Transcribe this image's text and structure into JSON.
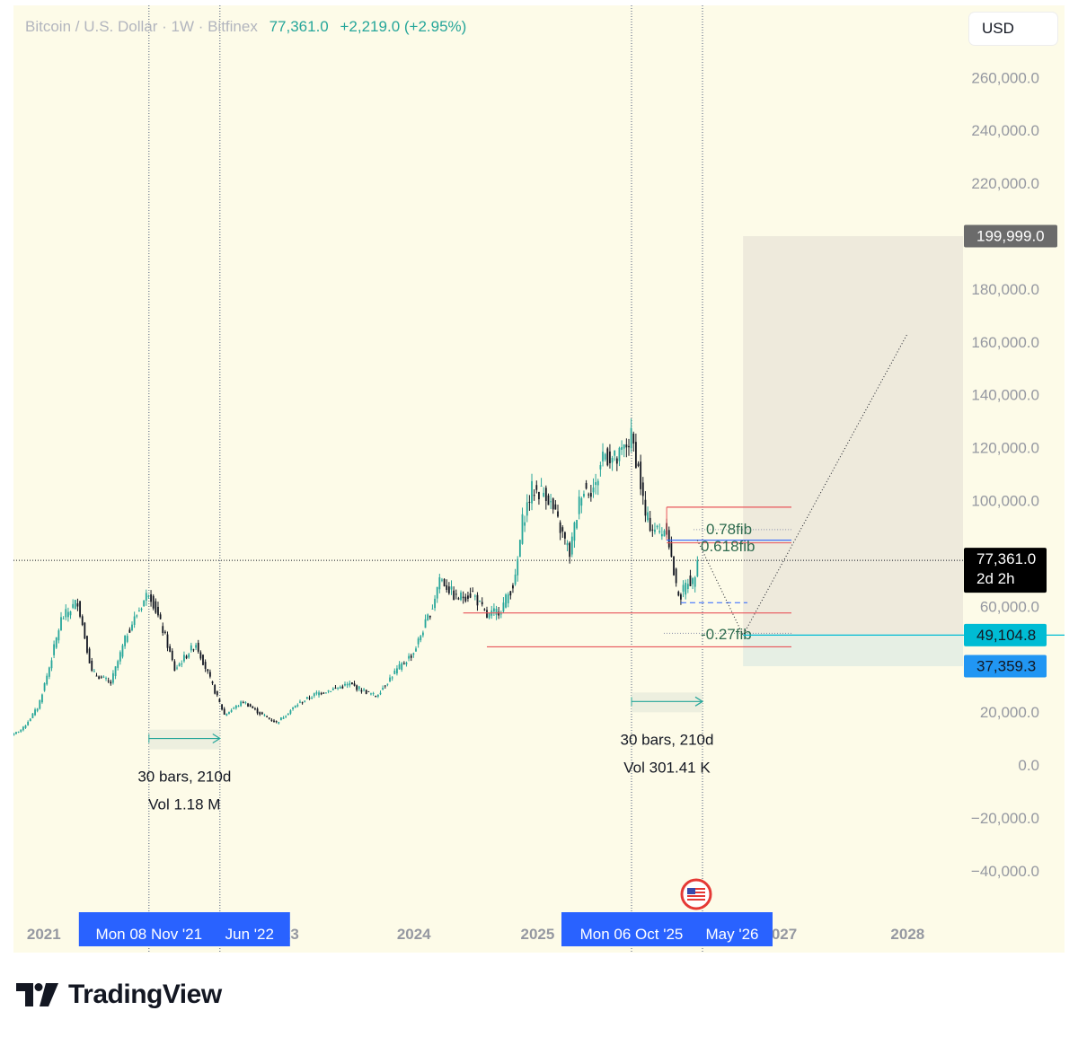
{
  "header": {
    "symbol": "Bitcoin / U.S. Dollar · 1W · Bitfinex",
    "price": "77,361.0",
    "change": "+2,219.0 (+2.95%)"
  },
  "currency_button": {
    "label": "USD"
  },
  "footer": {
    "brand": "TradingView"
  },
  "colors": {
    "background": "#fdfbe8",
    "up": "#26a69a",
    "down": "#131722",
    "fib_red": "#e8545a",
    "fib_blue": "#2962ff",
    "cyan_label": "#00bcd4",
    "blue_label": "#2196f3",
    "date_label": "#2962ff",
    "target_box": "#eeeadc"
  },
  "chart_data": {
    "type": "candlestick",
    "y_axis": {
      "range": [
        -50000,
        270000
      ],
      "ticks": [
        "260,000.0",
        "240,000.0",
        "220,000.0",
        "180,000.0",
        "160,000.0",
        "140,000.0",
        "120,000.0",
        "100,000.0",
        "60,000.0",
        "20,000.0",
        "0.0",
        "−20,000.0",
        "−40,000.0"
      ],
      "tick_values": [
        260000,
        240000,
        220000,
        180000,
        160000,
        140000,
        120000,
        100000,
        60000,
        20000,
        0,
        -20000,
        -40000
      ]
    },
    "x_axis": {
      "labels": [
        "2021",
        "23",
        "2024",
        "2025",
        "027",
        "2028"
      ],
      "label_dates": [
        "2021-01-01",
        "2023-01-01",
        "2024-01-01",
        "2025-01-01",
        "2027-01-01",
        "2028-01-01"
      ]
    },
    "series_anchors": [
      [
        "2020-09-20",
        10500
      ],
      [
        "2020-11-01",
        14000
      ],
      [
        "2020-12-15",
        22000
      ],
      [
        "2021-01-15",
        36000
      ],
      [
        "2021-02-21",
        55000
      ],
      [
        "2021-04-11",
        62000
      ],
      [
        "2021-05-23",
        35000
      ],
      [
        "2021-07-18",
        31000
      ],
      [
        "2021-09-05",
        50000
      ],
      [
        "2021-11-08",
        66000
      ],
      [
        "2021-12-27",
        48000
      ],
      [
        "2022-01-23",
        36000
      ],
      [
        "2022-03-27",
        46000
      ],
      [
        "2022-05-15",
        30000
      ],
      [
        "2022-06-19",
        19000
      ],
      [
        "2022-08-14",
        24000
      ],
      [
        "2022-10-02",
        19500
      ],
      [
        "2022-11-20",
        16000
      ],
      [
        "2023-01-22",
        23000
      ],
      [
        "2023-03-19",
        27000
      ],
      [
        "2023-06-25",
        30500
      ],
      [
        "2023-09-10",
        26000
      ],
      [
        "2023-11-05",
        35000
      ],
      [
        "2023-12-31",
        42500
      ],
      [
        "2024-02-25",
        60000
      ],
      [
        "2024-03-17",
        71000
      ],
      [
        "2024-05-05",
        63000
      ],
      [
        "2024-06-23",
        65000
      ],
      [
        "2024-08-04",
        56000
      ],
      [
        "2024-09-15",
        59000
      ],
      [
        "2024-10-27",
        70000
      ],
      [
        "2024-11-17",
        92000
      ],
      [
        "2024-12-15",
        104000
      ],
      [
        "2025-01-26",
        103000
      ],
      [
        "2025-02-23",
        94000
      ],
      [
        "2025-04-06",
        80000
      ],
      [
        "2025-05-11",
        104000
      ],
      [
        "2025-06-22",
        105000
      ],
      [
        "2025-07-13",
        118000
      ],
      [
        "2025-08-24",
        115000
      ],
      [
        "2025-10-06",
        124000
      ],
      [
        "2025-10-26",
        112000
      ],
      [
        "2025-11-16",
        94000
      ],
      [
        "2025-11-30",
        91000
      ],
      [
        "2025-12-28",
        88000
      ],
      [
        "2026-01-18",
        90000
      ],
      [
        "2026-02-01",
        78000
      ],
      [
        "2026-02-15",
        67000
      ],
      [
        "2026-03-01",
        64000
      ],
      [
        "2026-03-22",
        70000
      ],
      [
        "2026-04-05",
        69000
      ],
      [
        "2026-04-19",
        77361
      ]
    ],
    "last_price": 77361,
    "fib_labels": [
      "0.78fib",
      "0.618fib",
      "-0.27fib"
    ],
    "fib_levels": [
      {
        "label": "",
        "value": 97500,
        "color": "red"
      },
      {
        "label": "0.78fib",
        "value": 89000,
        "color": "dotted"
      },
      {
        "label": "0.618fib",
        "value": 85000,
        "color": "blue-red"
      },
      {
        "label": "",
        "value": 57500,
        "color": "red"
      },
      {
        "label": "-0.27fib",
        "value": 49104.8,
        "color": "dotted"
      }
    ],
    "horizontal_rays": [
      {
        "value": 77361,
        "style": "dotted-black"
      },
      {
        "value": 49104.8,
        "style": "cyan"
      }
    ],
    "price_labels": [
      {
        "text": "199,999.0",
        "value": 199999,
        "style": "gray"
      },
      {
        "text": "77,361.0",
        "value": 77361,
        "style": "black"
      },
      {
        "text": "2d 2h",
        "value": 77361,
        "style": "black-sub"
      },
      {
        "text": "49,104.8",
        "value": 49104.8,
        "style": "cyan"
      },
      {
        "text": "37,359.3",
        "value": 37359.3,
        "style": "blue"
      }
    ],
    "target_box": {
      "from": "2026-09-01",
      "top": 199999,
      "mid": 49104.8,
      "bottom": 37359.3
    },
    "projection_path": [
      [
        "2026-04-19",
        85000
      ],
      [
        "2026-09-01",
        49104.8
      ],
      [
        "2027-12-31",
        163000
      ]
    ],
    "vertical_lines": [
      "2021-11-08",
      "2022-06-06",
      "2025-10-06",
      "2026-05-04"
    ],
    "measurements": [
      {
        "from": "2021-11-08",
        "to": "2022-06-06",
        "bars": "30 bars, 210d",
        "volume": "Vol 1.18 M",
        "value": 10000
      },
      {
        "from": "2025-10-06",
        "to": "2026-05-04",
        "bars": "30 bars, 210d",
        "volume": "Vol 301.41 K",
        "value": 24000
      }
    ],
    "date_markers": [
      {
        "ranges": [
          "2021-11-08",
          "2022-06-06"
        ],
        "labels": [
          "Mon 08 Nov '21",
          "Jun '22"
        ]
      },
      {
        "ranges": [
          "2025-10-06",
          "2026-05-04"
        ],
        "labels": [
          "Mon 06 Oct '25",
          "May '26"
        ]
      }
    ]
  }
}
